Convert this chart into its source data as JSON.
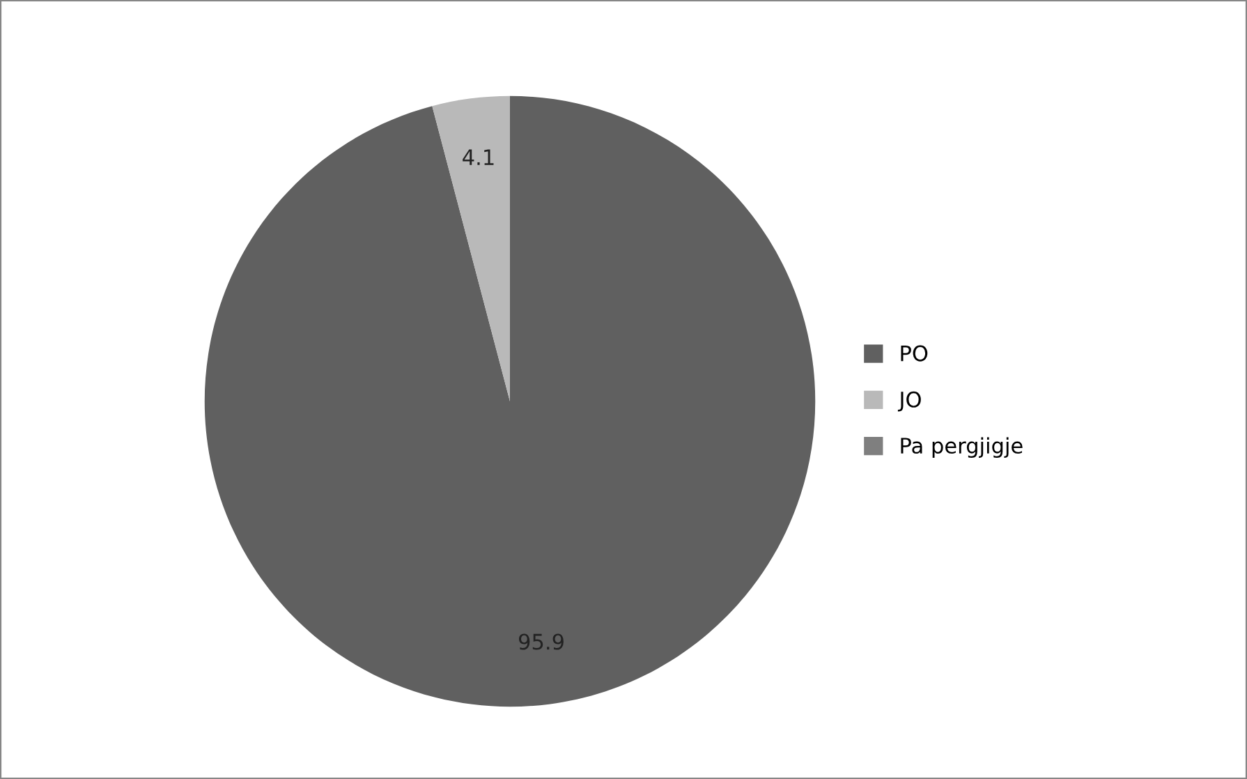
{
  "chart_data": {
    "type": "pie",
    "categories": [
      "PO",
      "JO",
      "Pa pergjigje"
    ],
    "values": [
      95.9,
      4.1,
      0
    ],
    "colors": [
      "#606060",
      "#b9b9b9",
      "#7f7f7f"
    ],
    "value_labels": [
      "95.9",
      "4.1",
      null
    ],
    "legend": "right"
  }
}
